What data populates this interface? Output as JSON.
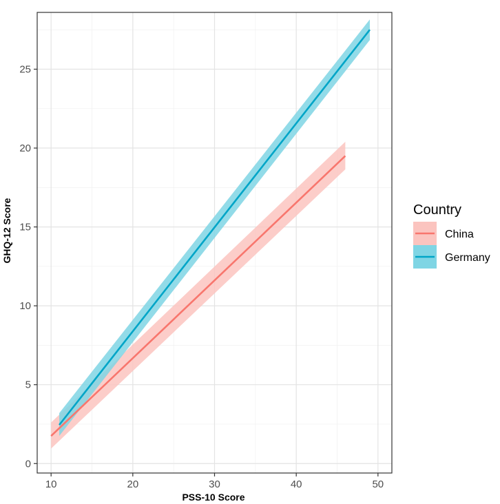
{
  "chart_data": {
    "type": "line",
    "title": "",
    "xlabel": "PSS-10 Score",
    "ylabel": "GHQ-12 Score",
    "xlim": [
      8.3,
      51.7
    ],
    "ylim": [
      -0.6,
      28.6
    ],
    "x_ticks": [
      "10",
      "20",
      "30",
      "40",
      "50"
    ],
    "y_ticks": [
      "0",
      "5",
      "10",
      "15",
      "20",
      "25"
    ],
    "grid": true,
    "confidence_band": true,
    "legend": {
      "title": "Country",
      "position": "right",
      "entries": [
        "China",
        "Germany"
      ]
    },
    "series": [
      {
        "name": "China",
        "color": "#f8766d",
        "band_color": "#fbc4bf",
        "x": [
          10,
          46
        ],
        "y": [
          1.75,
          19.5
        ],
        "ci_low": [
          0.95,
          18.65
        ],
        "ci_high": [
          2.6,
          20.4
        ]
      },
      {
        "name": "Germany",
        "color": "#00a5c7",
        "band_color": "#7fd5e4",
        "x": [
          11,
          49
        ],
        "y": [
          2.45,
          27.5
        ],
        "ci_low": [
          1.75,
          26.85
        ],
        "ci_high": [
          3.2,
          28.15
        ]
      }
    ]
  }
}
